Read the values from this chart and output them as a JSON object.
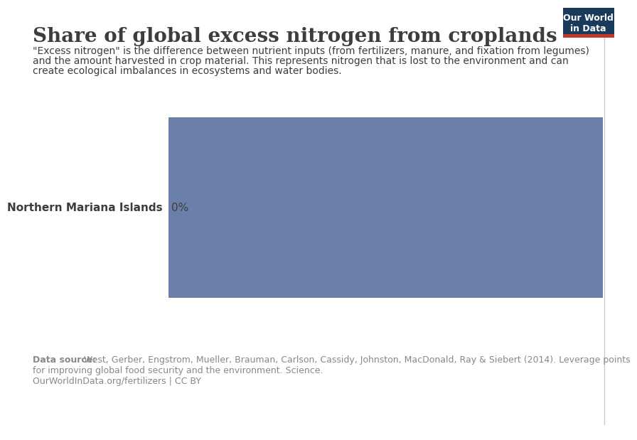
{
  "title": "Share of global excess nitrogen from croplands",
  "subtitle_line1": "\"Excess nitrogen\" is the difference between nutrient inputs (from fertilizers, manure, and fixation from legumes)",
  "subtitle_line2": "and the amount harvested in crop material. This represents nitrogen that is lost to the environment and can",
  "subtitle_line3": "create ecological imbalances in ecosystems and water bodies.",
  "bar_label": "Northern Mariana Islands",
  "bar_value_label": "0%",
  "bar_color": "#6b80a8",
  "background_color": "#ffffff",
  "text_color": "#3d3d3d",
  "footer_color": "#888888",
  "data_source_bold": "Data source:",
  "data_source_rest": " West, Gerber, Engstrom, Mueller, Brauman, Carlson, Cassidy, Johnston, MacDonald, Ray & Siebert (2014). Leverage points",
  "data_source_line2": "for improving global food security and the environment. Science.",
  "data_url": "OurWorldInData.org/fertilizers | CC BY",
  "owid_box_bg": "#1a3a5c",
  "owid_box_accent": "#c0392b",
  "owid_text_line1": "Our World",
  "owid_text_line2": "in Data",
  "right_line_color": "#cccccc",
  "title_fontsize": 20,
  "subtitle_fontsize": 10,
  "label_fontsize": 11,
  "footer_fontsize": 9
}
